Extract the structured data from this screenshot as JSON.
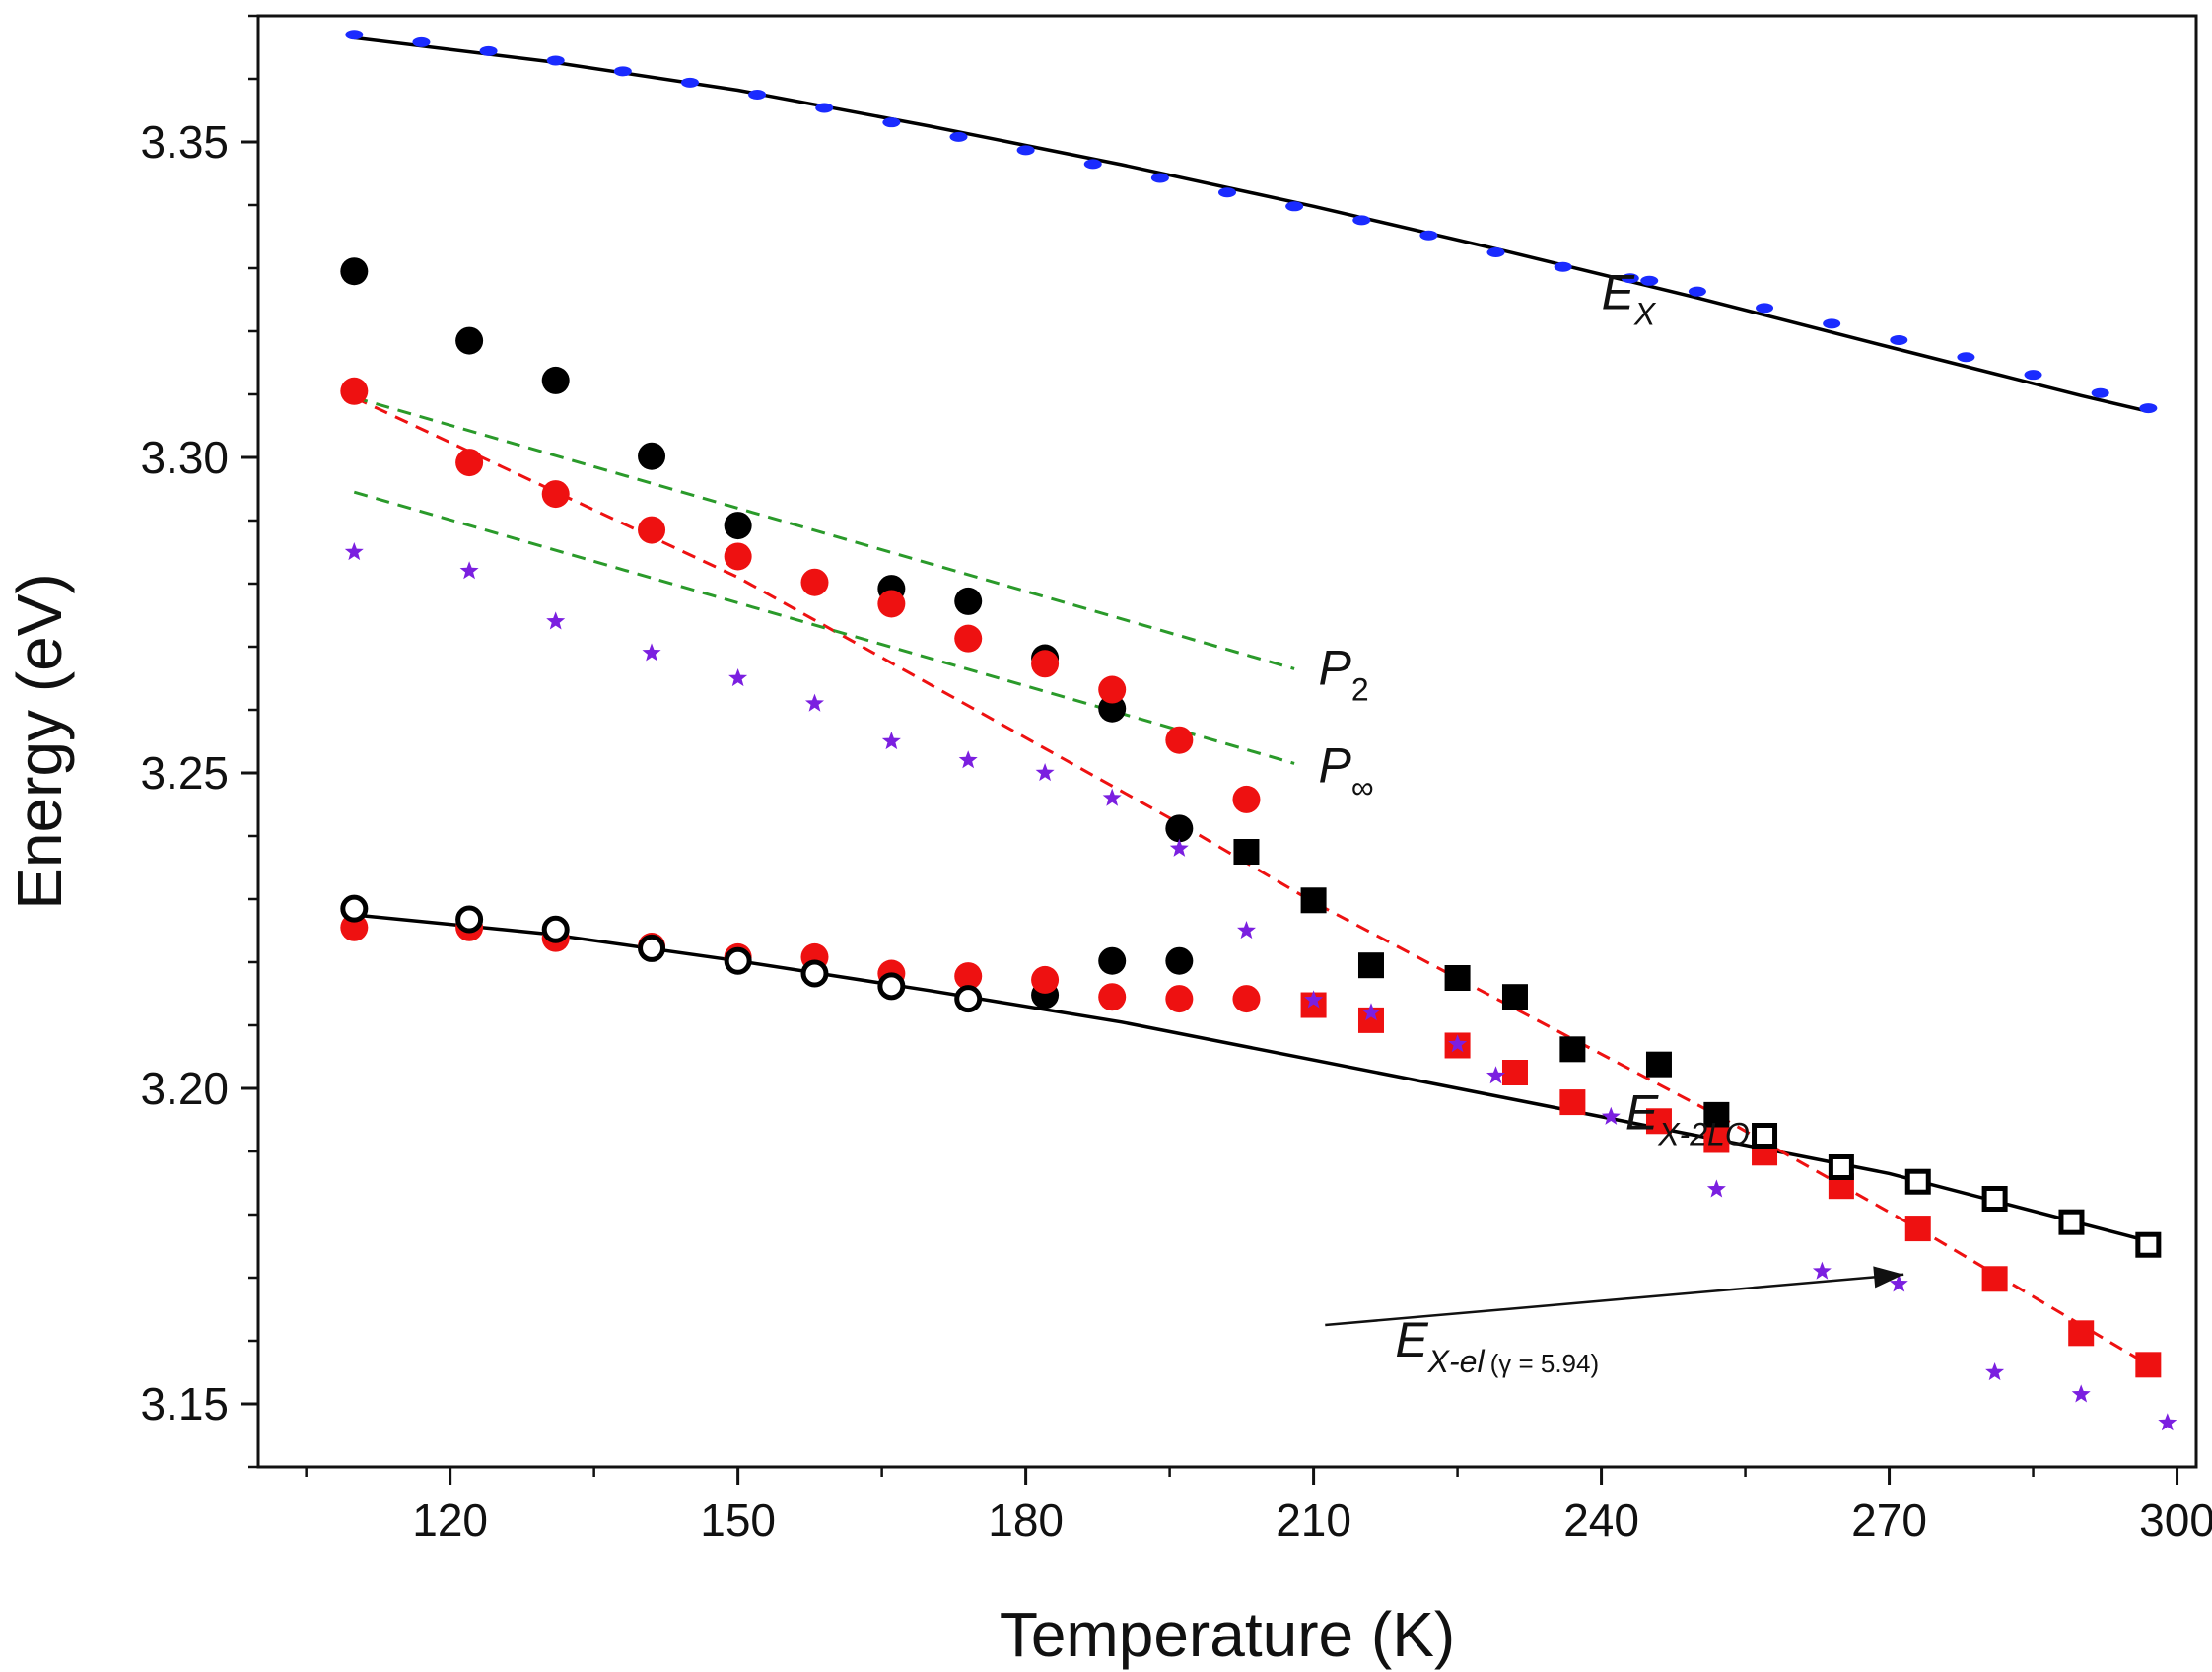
{
  "chart_data": {
    "type": "scatter",
    "xlabel": "Temperature (K)",
    "ylabel": "Energy (eV)",
    "xlim": [
      100,
      302
    ],
    "ylim": [
      3.14,
      3.37
    ],
    "xticks": [
      120,
      150,
      180,
      210,
      240,
      270,
      300
    ],
    "yticks": [
      3.15,
      3.2,
      3.25,
      3.3,
      3.35
    ],
    "xtick_labels": [
      "120",
      "150",
      "180",
      "210",
      "240",
      "270",
      "300"
    ],
    "ytick_labels": [
      "3.15",
      "3.20",
      "3.25",
      "3.30",
      "3.35"
    ],
    "grid": false,
    "colors": {
      "black": "#000000",
      "red": "#ee1111",
      "blue": "#1a2bff",
      "purple": "#7b1fe0",
      "green": "#2a9a2a"
    },
    "series": [
      {
        "name": "E_X data",
        "marker": "dash",
        "color": "#1a2bff",
        "x": [
          110,
          117,
          124,
          131,
          138,
          145,
          152,
          159,
          166,
          173,
          180,
          187,
          194,
          201,
          208,
          215,
          222,
          229,
          236,
          243,
          245,
          250,
          257,
          264,
          271,
          278,
          285,
          292,
          297
        ],
        "y": [
          3.367,
          3.3658,
          3.3644,
          3.3629,
          3.3612,
          3.3594,
          3.3575,
          3.3554,
          3.3531,
          3.3508,
          3.3487,
          3.3465,
          3.3443,
          3.342,
          3.3398,
          3.3376,
          3.3352,
          3.3325,
          3.3302,
          3.3284,
          3.328,
          3.3263,
          3.3237,
          3.3212,
          3.3186,
          3.3159,
          3.3131,
          3.3102,
          3.3078
        ]
      },
      {
        "name": "E_X fit",
        "marker": "line",
        "color": "#000000",
        "x": [
          110,
          130,
          150,
          170,
          190,
          210,
          230,
          250,
          270,
          290,
          297
        ],
        "y": [
          3.3665,
          3.3628,
          3.3582,
          3.3525,
          3.3464,
          3.3398,
          3.3327,
          3.3253,
          3.3175,
          3.3098,
          3.3073
        ]
      },
      {
        "name": "Black solid circles (upper)",
        "marker": "circle",
        "color": "#000000",
        "x": [
          110,
          122,
          131,
          141,
          150,
          166,
          174,
          182,
          189,
          196
        ],
        "y": [
          3.3295,
          3.3185,
          3.3122,
          3.3002,
          3.2892,
          3.2792,
          3.2772,
          3.2682,
          3.2602,
          3.2412
        ]
      },
      {
        "name": "Red circles (upper)",
        "marker": "circle",
        "color": "#ee1111",
        "x": [
          110,
          122,
          131,
          141,
          150,
          158,
          166,
          174,
          182,
          189,
          196,
          203
        ],
        "y": [
          3.3105,
          3.2992,
          3.2942,
          3.2885,
          3.2843,
          3.2802,
          3.2768,
          3.2713,
          3.2673,
          3.2632,
          3.2552,
          3.2458
        ]
      },
      {
        "name": "Black solid circles (lower)",
        "marker": "circle",
        "color": "#000000",
        "x": [
          182,
          189,
          196
        ],
        "y": [
          3.2148,
          3.2202,
          3.2202
        ]
      },
      {
        "name": "Red circles (lower)",
        "marker": "circle",
        "color": "#ee1111",
        "x": [
          110,
          122,
          131,
          141,
          150,
          158,
          166,
          174,
          182,
          189,
          196,
          203
        ],
        "y": [
          3.2255,
          3.2255,
          3.2238,
          3.2225,
          3.2208,
          3.2208,
          3.2182,
          3.2178,
          3.2172,
          3.2145,
          3.2142,
          3.2142
        ]
      },
      {
        "name": "Black open circles",
        "marker": "open-circle",
        "color": "#000000",
        "x": [
          110,
          122,
          131,
          141,
          150,
          158,
          166,
          174
        ],
        "y": [
          3.2285,
          3.2268,
          3.2252,
          3.2222,
          3.2202,
          3.2182,
          3.2162,
          3.2142
        ]
      },
      {
        "name": "Black solid squares",
        "marker": "square",
        "color": "#000000",
        "x": [
          203,
          210,
          216,
          225,
          231,
          237,
          246,
          252
        ],
        "y": [
          3.2375,
          3.2298,
          3.2195,
          3.2175,
          3.2145,
          3.2062,
          3.2038,
          3.1958
        ]
      },
      {
        "name": "Red squares",
        "marker": "square",
        "color": "#ee1111",
        "x": [
          210,
          216,
          225,
          231,
          237,
          246,
          252,
          257,
          265,
          273,
          281,
          290,
          297
        ],
        "y": [
          3.2132,
          3.2108,
          3.2068,
          3.2025,
          3.1978,
          3.1948,
          3.1918,
          3.1898,
          3.1845,
          3.1778,
          3.1698,
          3.1612,
          3.1562
        ]
      },
      {
        "name": "Black open squares",
        "marker": "open-square",
        "color": "#000000",
        "x": [
          257,
          265,
          273,
          281,
          289,
          297
        ],
        "y": [
          3.1925,
          3.1875,
          3.1852,
          3.1825,
          3.1788,
          3.1752
        ]
      },
      {
        "name": "Purple stars",
        "marker": "star",
        "color": "#7b1fe0",
        "x": [
          110,
          122,
          131,
          141,
          150,
          158,
          166,
          174,
          182,
          189,
          196,
          203,
          210,
          216,
          225,
          229,
          241,
          252,
          263,
          271,
          281,
          290,
          299
        ],
        "y": [
          3.285,
          3.282,
          3.274,
          3.269,
          3.265,
          3.261,
          3.255,
          3.252,
          3.25,
          3.246,
          3.238,
          3.225,
          3.214,
          3.212,
          3.207,
          3.202,
          3.1955,
          3.184,
          3.171,
          3.169,
          3.155,
          3.1515,
          3.147
        ]
      },
      {
        "name": "E_X-2LO fit",
        "marker": "line",
        "color": "#000000",
        "x": [
          110,
          130,
          150,
          170,
          190,
          210,
          230,
          250,
          270,
          297
        ],
        "y": [
          3.2275,
          3.2245,
          3.2202,
          3.2155,
          3.2105,
          3.2045,
          3.1985,
          3.1925,
          3.1865,
          3.1758
        ]
      },
      {
        "name": "Red dashed fit",
        "marker": "dashed-line",
        "color": "#ee1111",
        "x": [
          110,
          150,
          196,
          210,
          252,
          273,
          297
        ],
        "y": [
          3.3095,
          3.281,
          3.242,
          3.2295,
          3.1958,
          3.1778,
          3.1562
        ]
      },
      {
        "name": "P2",
        "marker": "dashed-line",
        "color": "#2a9a2a",
        "x": [
          110,
          208
        ],
        "y": [
          3.3095,
          3.2665
        ]
      },
      {
        "name": "P∞",
        "marker": "dashed-line",
        "color": "#2a9a2a",
        "x": [
          110,
          208
        ],
        "y": [
          3.2945,
          3.2515
        ]
      }
    ],
    "annotations": [
      {
        "main": "E",
        "sub": "X",
        "x": 240,
        "y": 3.3235
      },
      {
        "main": "P",
        "sub": "2",
        "x": 210.5,
        "y": 3.264
      },
      {
        "main": "P",
        "sub": "∞",
        "x": 210.5,
        "y": 3.2485
      },
      {
        "main": "E",
        "sub": "X-2LO",
        "x": 242.5,
        "y": 3.1935
      },
      {
        "main": "E",
        "sub": "X-el",
        "paren": "(γ = 5.94)",
        "x": 218.5,
        "y": 3.1575
      }
    ],
    "arrow": {
      "from_x": 211.2,
      "from_y": 3.1625,
      "to_x": 271.5,
      "to_y": 3.1705
    }
  }
}
